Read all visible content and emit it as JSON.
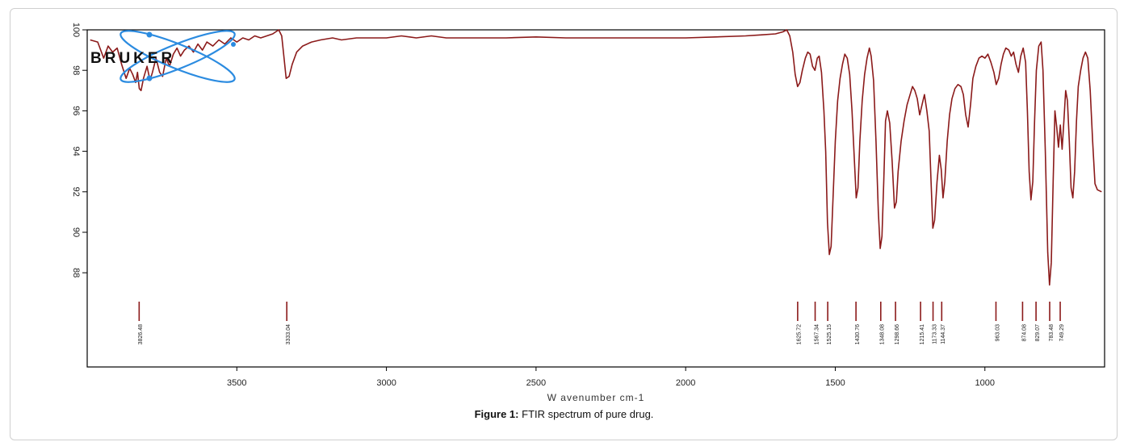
{
  "caption": {
    "label": "Figure 1:",
    "text": "FTIR spectrum of pure drug."
  },
  "logo": {
    "text": "BRUKER",
    "icon": "atom-orbit-logo",
    "orbit_color": "#2b8be0",
    "text_color": "#111111"
  },
  "chart_data": {
    "type": "line",
    "title": "",
    "xlabel": "W avenumber cm-1",
    "ylabel": "",
    "xlim": [
      4000,
      600
    ],
    "ylim": [
      86,
      100
    ],
    "x_reversed": true,
    "grid": false,
    "line_color": "#8b1a1a",
    "x_ticks": [
      3500,
      3000,
      2500,
      2000,
      1500,
      1000
    ],
    "y_ticks": [
      100,
      98,
      96,
      94,
      92,
      90,
      88
    ],
    "series": [
      {
        "values": [
          [
            3990,
            99.5
          ],
          [
            3965,
            99.4
          ],
          [
            3945,
            98.6
          ],
          [
            3930,
            99.2
          ],
          [
            3915,
            98.9
          ],
          [
            3900,
            99.1
          ],
          [
            3885,
            98.3
          ],
          [
            3870,
            97.6
          ],
          [
            3858,
            98.1
          ],
          [
            3848,
            97.8
          ],
          [
            3838,
            97.4
          ],
          [
            3832,
            97.9
          ],
          [
            3826,
            97.1
          ],
          [
            3820,
            97.0
          ],
          [
            3812,
            97.6
          ],
          [
            3800,
            98.2
          ],
          [
            3790,
            97.5
          ],
          [
            3782,
            97.9
          ],
          [
            3770,
            98.6
          ],
          [
            3758,
            97.9
          ],
          [
            3748,
            97.7
          ],
          [
            3736,
            98.6
          ],
          [
            3725,
            98.2
          ],
          [
            3712,
            98.8
          ],
          [
            3700,
            99.1
          ],
          [
            3688,
            98.7
          ],
          [
            3675,
            99.0
          ],
          [
            3660,
            99.2
          ],
          [
            3645,
            98.9
          ],
          [
            3630,
            99.3
          ],
          [
            3615,
            99.0
          ],
          [
            3600,
            99.4
          ],
          [
            3580,
            99.2
          ],
          [
            3560,
            99.5
          ],
          [
            3540,
            99.3
          ],
          [
            3520,
            99.6
          ],
          [
            3500,
            99.4
          ],
          [
            3480,
            99.6
          ],
          [
            3460,
            99.5
          ],
          [
            3440,
            99.7
          ],
          [
            3420,
            99.6
          ],
          [
            3400,
            99.7
          ],
          [
            3380,
            99.8
          ],
          [
            3360,
            100.0
          ],
          [
            3350,
            99.7
          ],
          [
            3342,
            98.6
          ],
          [
            3335,
            97.6
          ],
          [
            3325,
            97.7
          ],
          [
            3315,
            98.3
          ],
          [
            3300,
            98.9
          ],
          [
            3280,
            99.2
          ],
          [
            3250,
            99.4
          ],
          [
            3220,
            99.5
          ],
          [
            3180,
            99.6
          ],
          [
            3150,
            99.5
          ],
          [
            3100,
            99.6
          ],
          [
            3050,
            99.6
          ],
          [
            3000,
            99.6
          ],
          [
            2950,
            99.7
          ],
          [
            2900,
            99.6
          ],
          [
            2850,
            99.7
          ],
          [
            2800,
            99.6
          ],
          [
            2700,
            99.6
          ],
          [
            2600,
            99.6
          ],
          [
            2500,
            99.65
          ],
          [
            2400,
            99.6
          ],
          [
            2300,
            99.6
          ],
          [
            2200,
            99.6
          ],
          [
            2100,
            99.6
          ],
          [
            2000,
            99.6
          ],
          [
            1900,
            99.65
          ],
          [
            1800,
            99.7
          ],
          [
            1750,
            99.75
          ],
          [
            1700,
            99.8
          ],
          [
            1675,
            99.9
          ],
          [
            1662,
            100.0
          ],
          [
            1652,
            99.7
          ],
          [
            1642,
            98.9
          ],
          [
            1634,
            97.8
          ],
          [
            1626,
            97.2
          ],
          [
            1618,
            97.4
          ],
          [
            1610,
            98.0
          ],
          [
            1600,
            98.6
          ],
          [
            1592,
            98.9
          ],
          [
            1584,
            98.8
          ],
          [
            1576,
            98.2
          ],
          [
            1568,
            98.0
          ],
          [
            1560,
            98.6
          ],
          [
            1554,
            98.7
          ],
          [
            1546,
            97.9
          ],
          [
            1538,
            96.0
          ],
          [
            1532,
            94.0
          ],
          [
            1526,
            90.5
          ],
          [
            1520,
            88.9
          ],
          [
            1514,
            89.3
          ],
          [
            1508,
            91.5
          ],
          [
            1500,
            94.5
          ],
          [
            1492,
            96.5
          ],
          [
            1484,
            97.6
          ],
          [
            1476,
            98.3
          ],
          [
            1468,
            98.8
          ],
          [
            1460,
            98.6
          ],
          [
            1452,
            97.8
          ],
          [
            1444,
            96.0
          ],
          [
            1436,
            93.5
          ],
          [
            1430,
            91.7
          ],
          [
            1424,
            92.2
          ],
          [
            1418,
            94.5
          ],
          [
            1410,
            96.5
          ],
          [
            1402,
            97.8
          ],
          [
            1394,
            98.6
          ],
          [
            1386,
            99.1
          ],
          [
            1380,
            98.7
          ],
          [
            1372,
            97.5
          ],
          [
            1364,
            94.5
          ],
          [
            1356,
            91.0
          ],
          [
            1350,
            89.2
          ],
          [
            1344,
            89.8
          ],
          [
            1338,
            92.5
          ],
          [
            1332,
            95.5
          ],
          [
            1326,
            96.0
          ],
          [
            1318,
            95.4
          ],
          [
            1310,
            93.5
          ],
          [
            1302,
            91.2
          ],
          [
            1296,
            91.5
          ],
          [
            1290,
            93.0
          ],
          [
            1280,
            94.5
          ],
          [
            1270,
            95.5
          ],
          [
            1260,
            96.3
          ],
          [
            1250,
            96.8
          ],
          [
            1242,
            97.2
          ],
          [
            1234,
            97.0
          ],
          [
            1226,
            96.6
          ],
          [
            1218,
            95.8
          ],
          [
            1210,
            96.3
          ],
          [
            1202,
            96.8
          ],
          [
            1194,
            96.0
          ],
          [
            1186,
            95.0
          ],
          [
            1180,
            92.5
          ],
          [
            1174,
            90.2
          ],
          [
            1168,
            90.6
          ],
          [
            1160,
            92.5
          ],
          [
            1152,
            93.8
          ],
          [
            1146,
            93.1
          ],
          [
            1140,
            91.7
          ],
          [
            1134,
            92.5
          ],
          [
            1126,
            94.5
          ],
          [
            1118,
            95.8
          ],
          [
            1110,
            96.6
          ],
          [
            1100,
            97.1
          ],
          [
            1090,
            97.3
          ],
          [
            1080,
            97.2
          ],
          [
            1072,
            96.8
          ],
          [
            1064,
            95.8
          ],
          [
            1056,
            95.2
          ],
          [
            1048,
            96.3
          ],
          [
            1040,
            97.6
          ],
          [
            1030,
            98.2
          ],
          [
            1020,
            98.6
          ],
          [
            1010,
            98.7
          ],
          [
            1000,
            98.6
          ],
          [
            990,
            98.8
          ],
          [
            980,
            98.4
          ],
          [
            970,
            97.9
          ],
          [
            962,
            97.3
          ],
          [
            954,
            97.6
          ],
          [
            946,
            98.3
          ],
          [
            938,
            98.8
          ],
          [
            930,
            99.1
          ],
          [
            920,
            99.0
          ],
          [
            912,
            98.7
          ],
          [
            904,
            98.9
          ],
          [
            896,
            98.3
          ],
          [
            888,
            97.9
          ],
          [
            880,
            98.7
          ],
          [
            872,
            99.1
          ],
          [
            864,
            98.4
          ],
          [
            858,
            96.0
          ],
          [
            852,
            93.0
          ],
          [
            846,
            91.6
          ],
          [
            840,
            92.5
          ],
          [
            834,
            95.5
          ],
          [
            828,
            98.0
          ],
          [
            820,
            99.2
          ],
          [
            812,
            99.4
          ],
          [
            806,
            98.0
          ],
          [
            798,
            94.0
          ],
          [
            790,
            89.0
          ],
          [
            784,
            87.4
          ],
          [
            778,
            88.5
          ],
          [
            772,
            92.5
          ],
          [
            766,
            96.0
          ],
          [
            760,
            95.2
          ],
          [
            754,
            94.2
          ],
          [
            748,
            95.3
          ],
          [
            742,
            94.1
          ],
          [
            736,
            95.5
          ],
          [
            730,
            97.0
          ],
          [
            724,
            96.5
          ],
          [
            718,
            94.5
          ],
          [
            712,
            92.2
          ],
          [
            706,
            91.7
          ],
          [
            700,
            93.0
          ],
          [
            694,
            95.5
          ],
          [
            688,
            97.2
          ],
          [
            680,
            98.0
          ],
          [
            672,
            98.6
          ],
          [
            664,
            98.9
          ],
          [
            656,
            98.6
          ],
          [
            648,
            97.0
          ],
          [
            640,
            94.5
          ],
          [
            632,
            92.4
          ],
          [
            624,
            92.1
          ],
          [
            610,
            92.0
          ]
        ]
      }
    ],
    "peak_labels": [
      {
        "x": 3826.4,
        "label": "3826.48"
      },
      {
        "x": 3333.0,
        "label": "3333.04"
      },
      {
        "x": 1625.7,
        "label": "1625.72"
      },
      {
        "x": 1567.3,
        "label": "1567.34"
      },
      {
        "x": 1525.2,
        "label": "1525.15"
      },
      {
        "x": 1430.8,
        "label": "1430.76"
      },
      {
        "x": 1348.0,
        "label": "1348.08"
      },
      {
        "x": 1298.7,
        "label": "1298.66"
      },
      {
        "x": 1215.0,
        "label": "1215.41"
      },
      {
        "x": 1173.3,
        "label": "1173.33"
      },
      {
        "x": 1144.3,
        "label": "1144.37"
      },
      {
        "x": 963.0,
        "label": "963.03"
      },
      {
        "x": 874.1,
        "label": "874.08"
      },
      {
        "x": 829.1,
        "label": "829.07"
      },
      {
        "x": 783.5,
        "label": "783.48"
      },
      {
        "x": 748.3,
        "label": "749.29"
      }
    ]
  }
}
